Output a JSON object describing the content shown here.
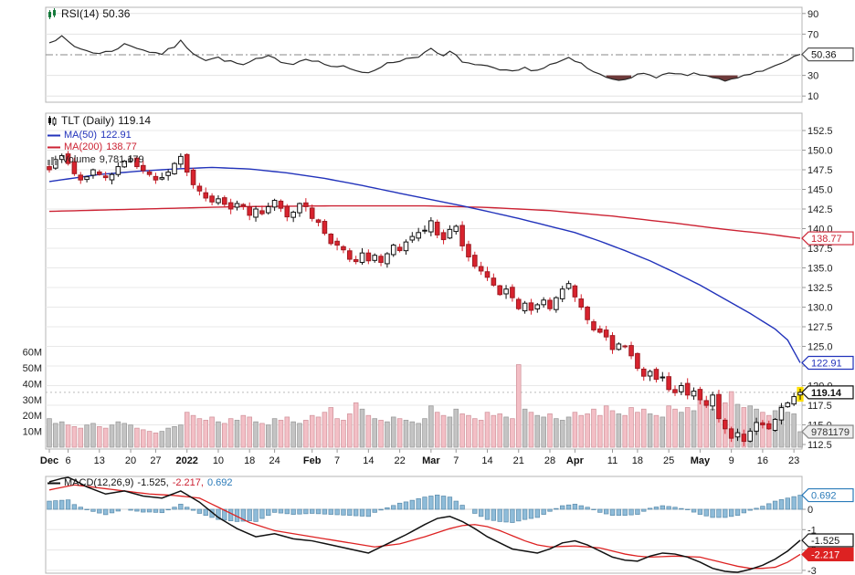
{
  "legends": {
    "rsi": {
      "label": "RSI(14)",
      "value": "50.36"
    },
    "symbol": {
      "label": "TLT (Daily)",
      "value": "119.14"
    },
    "ma50": {
      "label": "MA(50)",
      "value": "122.91"
    },
    "ma200": {
      "label": "MA(200)",
      "value": "138.77"
    },
    "volume": {
      "label": "Volume",
      "value": "9,781,179"
    },
    "macd": {
      "label": "MACD(12,26,9)",
      "macd": "-1.525",
      "signal": "-2.217",
      "hist": "0.692"
    }
  },
  "callouts": {
    "rsi": "50.36",
    "ma200": "138.77",
    "ma50": "122.91",
    "last": "119.14",
    "volume": "9781179",
    "hist": "0.692",
    "macd": "-1.525",
    "signal": "-2.217"
  },
  "axes": {
    "rsi_ticks": [
      90,
      70,
      30,
      10
    ],
    "rsi_mid": 50,
    "price_ticks": [
      "152.5",
      "150.0",
      "147.5",
      "145.0",
      "142.5",
      "140.0",
      "137.5",
      "135.0",
      "132.5",
      "130.0",
      "127.5",
      "125.0",
      "120.0",
      "117.5",
      "115.0",
      "112.5"
    ],
    "volume_ticks": [
      "60M",
      "50M",
      "40M",
      "30M",
      "20M",
      "10M"
    ],
    "macd_ticks": [
      "0",
      "-1",
      "-2",
      "-3"
    ],
    "x_ticks": [
      {
        "l": "Dec",
        "i": 0,
        "b": 1
      },
      {
        "l": "6",
        "i": 3
      },
      {
        "l": "13",
        "i": 8
      },
      {
        "l": "20",
        "i": 13
      },
      {
        "l": "27",
        "i": 17
      },
      {
        "l": "2022",
        "i": 22,
        "b": 1
      },
      {
        "l": "10",
        "i": 27
      },
      {
        "l": "18",
        "i": 32
      },
      {
        "l": "24",
        "i": 36
      },
      {
        "l": "Feb",
        "i": 42,
        "b": 1
      },
      {
        "l": "7",
        "i": 46
      },
      {
        "l": "14",
        "i": 51
      },
      {
        "l": "22",
        "i": 56
      },
      {
        "l": "Mar",
        "i": 61,
        "b": 1
      },
      {
        "l": "7",
        "i": 65
      },
      {
        "l": "14",
        "i": 70
      },
      {
        "l": "21",
        "i": 75
      },
      {
        "l": "28",
        "i": 80
      },
      {
        "l": "Apr",
        "i": 84,
        "b": 1
      },
      {
        "l": "11",
        "i": 90
      },
      {
        "l": "18",
        "i": 94
      },
      {
        "l": "25",
        "i": 99
      },
      {
        "l": "May",
        "i": 104,
        "b": 1
      },
      {
        "l": "9",
        "i": 109
      },
      {
        "l": "16",
        "i": 114
      },
      {
        "l": "23",
        "i": 119
      }
    ]
  },
  "colors": {
    "ma50": "#2233bb",
    "ma200": "#cc2233",
    "candle_down": "#d9232e",
    "candle_down_border": "#9c1b22",
    "candle_up_fill": "#ffffff",
    "candle_stroke": "#111111",
    "vol_up": "#c4c4c4",
    "vol_up_border": "#9a9a9a",
    "vol_down": "#f3bfc6",
    "vol_down_border": "#d1949c",
    "hist": "#8fbcd9",
    "hist_stroke": "#5f8fae",
    "hist_text": "#2b7bb9",
    "macd_line": "#111111",
    "signal": "#dd2222",
    "rsi": "#2a2a2a",
    "highlight": "#ffdf00",
    "oversold": "#6e3a3a"
  },
  "chart_data": {
    "type": "candlestick",
    "symbol": "TLT",
    "timeframe": "Daily",
    "last_price": 119.14,
    "ylim_price": [
      112.5,
      152.5
    ],
    "ylim_rsi": [
      10,
      90
    ],
    "ylim_macd": [
      -3,
      1
    ],
    "indicators": {
      "rsi_period": 14,
      "rsi_last": 50.36,
      "ma50_last": 122.91,
      "ma200_last": 138.77,
      "volume_last": 9781179,
      "macd_params": "12,26,9",
      "macd_last": -1.525,
      "macd_signal_last": -2.217,
      "macd_hist_last": 0.692
    },
    "closes": [
      147.5,
      148.8,
      149.3,
      148.3,
      147.0,
      146.2,
      146.6,
      147.5,
      146.9,
      146.5,
      146.9,
      147.9,
      148.6,
      148.9,
      147.9,
      147.4,
      146.9,
      146.2,
      146.5,
      147.2,
      148.3,
      149.2,
      147.2,
      145.6,
      144.8,
      143.9,
      143.4,
      143.8,
      143.1,
      142.5,
      143.2,
      142.9,
      141.7,
      142.5,
      141.9,
      142.8,
      143.6,
      142.6,
      141.5,
      142.1,
      143.2,
      142.8,
      141.3,
      140.8,
      139.4,
      138.1,
      137.9,
      137.3,
      136.1,
      135.8,
      136.9,
      135.9,
      136.6,
      135.7,
      136.8,
      137.9,
      137.2,
      138.3,
      139.0,
      139.5,
      139.8,
      141.0,
      139.2,
      138.6,
      139.9,
      140.3,
      137.8,
      136.4,
      135.2,
      134.6,
      133.8,
      132.8,
      131.6,
      132.3,
      131.2,
      129.8,
      130.5,
      129.6,
      130.3,
      130.9,
      129.8,
      131.2,
      132.3,
      133.0,
      131.3,
      130.0,
      128.4,
      127.1,
      126.8,
      126.2,
      124.6,
      125.3,
      125.0,
      123.8,
      122.2,
      121.2,
      121.8,
      120.8,
      121.1,
      119.5,
      119.1,
      120.0,
      118.8,
      119.3,
      118.2,
      117.5,
      118.8,
      115.8,
      114.5,
      113.3,
      114.0,
      112.9,
      114.2,
      115.3,
      115.0,
      114.5,
      115.7,
      117.2,
      117.8,
      118.6,
      119.14
    ],
    "volumes_millions": [
      18,
      15,
      16,
      14,
      13,
      12,
      14,
      15,
      13,
      12,
      14,
      16,
      15,
      14,
      12,
      11,
      10,
      9,
      10,
      12,
      13,
      14,
      22,
      20,
      18,
      17,
      19,
      16,
      15,
      18,
      17,
      20,
      19,
      16,
      15,
      14,
      18,
      17,
      19,
      16,
      15,
      17,
      20,
      19,
      22,
      25,
      18,
      17,
      21,
      28,
      24,
      20,
      18,
      17,
      16,
      19,
      18,
      17,
      16,
      15,
      18,
      26,
      22,
      20,
      19,
      24,
      21,
      20,
      18,
      17,
      22,
      20,
      21,
      19,
      18,
      52,
      24,
      22,
      20,
      19,
      21,
      18,
      17,
      19,
      22,
      20,
      21,
      24,
      20,
      26,
      23,
      21,
      20,
      25,
      22,
      24,
      21,
      20,
      19,
      26,
      24,
      22,
      25,
      23,
      30,
      26,
      24,
      33,
      28,
      35,
      27,
      25,
      26,
      24,
      22,
      20,
      23,
      26,
      22,
      21,
      9.78
    ],
    "rsi_keypoints": [
      [
        0,
        63
      ],
      [
        2,
        67
      ],
      [
        4,
        58
      ],
      [
        6,
        54
      ],
      [
        8,
        51
      ],
      [
        10,
        54
      ],
      [
        12,
        60
      ],
      [
        14,
        57
      ],
      [
        16,
        53
      ],
      [
        18,
        51
      ],
      [
        20,
        58
      ],
      [
        21,
        63
      ],
      [
        23,
        52
      ],
      [
        25,
        45
      ],
      [
        27,
        47
      ],
      [
        29,
        43
      ],
      [
        31,
        40
      ],
      [
        33,
        45
      ],
      [
        35,
        48
      ],
      [
        37,
        44
      ],
      [
        39,
        41
      ],
      [
        41,
        47
      ],
      [
        43,
        43
      ],
      [
        45,
        39
      ],
      [
        47,
        38
      ],
      [
        49,
        34
      ],
      [
        51,
        33
      ],
      [
        53,
        39
      ],
      [
        55,
        43
      ],
      [
        57,
        46
      ],
      [
        59,
        49
      ],
      [
        61,
        55
      ],
      [
        63,
        48
      ],
      [
        64,
        53
      ],
      [
        66,
        44
      ],
      [
        68,
        40
      ],
      [
        70,
        38
      ],
      [
        72,
        35
      ],
      [
        74,
        33
      ],
      [
        76,
        37
      ],
      [
        78,
        35
      ],
      [
        80,
        40
      ],
      [
        82,
        44
      ],
      [
        83,
        46
      ],
      [
        85,
        41
      ],
      [
        87,
        33
      ],
      [
        89,
        28
      ],
      [
        91,
        26
      ],
      [
        93,
        29
      ],
      [
        95,
        31
      ],
      [
        97,
        29
      ],
      [
        99,
        32
      ],
      [
        101,
        30
      ],
      [
        103,
        31
      ],
      [
        105,
        29
      ],
      [
        107,
        26
      ],
      [
        109,
        25
      ],
      [
        111,
        30
      ],
      [
        113,
        34
      ],
      [
        115,
        36
      ],
      [
        117,
        41
      ],
      [
        119,
        47
      ],
      [
        120,
        50.36
      ]
    ],
    "ma50_keypoints": [
      [
        0,
        146.0
      ],
      [
        8,
        146.9
      ],
      [
        14,
        147.3
      ],
      [
        20,
        147.6
      ],
      [
        26,
        147.8
      ],
      [
        32,
        147.6
      ],
      [
        38,
        147.1
      ],
      [
        44,
        146.4
      ],
      [
        50,
        145.5
      ],
      [
        56,
        144.5
      ],
      [
        61,
        143.7
      ],
      [
        66,
        142.9
      ],
      [
        70,
        142.2
      ],
      [
        75,
        141.3
      ],
      [
        80,
        140.3
      ],
      [
        84,
        139.5
      ],
      [
        88,
        138.4
      ],
      [
        92,
        137.2
      ],
      [
        96,
        135.9
      ],
      [
        100,
        134.4
      ],
      [
        104,
        132.8
      ],
      [
        108,
        131.0
      ],
      [
        112,
        129.2
      ],
      [
        116,
        127.2
      ],
      [
        118,
        125.8
      ],
      [
        120,
        122.91
      ]
    ],
    "ma200_keypoints": [
      [
        0,
        142.2
      ],
      [
        15,
        142.5
      ],
      [
        30,
        142.8
      ],
      [
        45,
        142.9
      ],
      [
        60,
        142.9
      ],
      [
        70,
        142.7
      ],
      [
        80,
        142.3
      ],
      [
        90,
        141.6
      ],
      [
        100,
        140.7
      ],
      [
        108,
        139.9
      ],
      [
        114,
        139.4
      ],
      [
        120,
        138.77
      ]
    ],
    "macd_keypoints": [
      [
        0,
        1.35
      ],
      [
        3,
        1.6
      ],
      [
        6,
        1.1
      ],
      [
        9,
        0.75
      ],
      [
        12,
        0.9
      ],
      [
        15,
        0.65
      ],
      [
        18,
        0.55
      ],
      [
        21,
        0.9
      ],
      [
        24,
        0.35
      ],
      [
        27,
        -0.4
      ],
      [
        30,
        -0.95
      ],
      [
        33,
        -1.35
      ],
      [
        36,
        -1.2
      ],
      [
        39,
        -1.45
      ],
      [
        42,
        -1.55
      ],
      [
        45,
        -1.75
      ],
      [
        48,
        -1.95
      ],
      [
        51,
        -2.15
      ],
      [
        54,
        -1.7
      ],
      [
        57,
        -1.25
      ],
      [
        60,
        -0.75
      ],
      [
        62,
        -0.45
      ],
      [
        64,
        -0.35
      ],
      [
        66,
        -0.6
      ],
      [
        68,
        -0.95
      ],
      [
        70,
        -1.35
      ],
      [
        72,
        -1.65
      ],
      [
        74,
        -1.95
      ],
      [
        76,
        -2.05
      ],
      [
        78,
        -2.15
      ],
      [
        80,
        -1.95
      ],
      [
        82,
        -1.65
      ],
      [
        84,
        -1.55
      ],
      [
        86,
        -1.75
      ],
      [
        88,
        -2.05
      ],
      [
        90,
        -2.35
      ],
      [
        92,
        -2.5
      ],
      [
        94,
        -2.55
      ],
      [
        96,
        -2.3
      ],
      [
        98,
        -2.15
      ],
      [
        100,
        -2.2
      ],
      [
        102,
        -2.35
      ],
      [
        104,
        -2.6
      ],
      [
        106,
        -2.9
      ],
      [
        108,
        -3.05
      ],
      [
        110,
        -3.1
      ],
      [
        112,
        -2.95
      ],
      [
        114,
        -2.75
      ],
      [
        116,
        -2.45
      ],
      [
        118,
        -2.05
      ],
      [
        120,
        -1.525
      ]
    ],
    "signal_keypoints": [
      [
        0,
        0.95
      ],
      [
        4,
        1.2
      ],
      [
        8,
        1.05
      ],
      [
        12,
        0.9
      ],
      [
        16,
        0.75
      ],
      [
        20,
        0.68
      ],
      [
        24,
        0.55
      ],
      [
        28,
        -0.05
      ],
      [
        32,
        -0.65
      ],
      [
        36,
        -1.05
      ],
      [
        40,
        -1.25
      ],
      [
        44,
        -1.45
      ],
      [
        48,
        -1.65
      ],
      [
        52,
        -1.85
      ],
      [
        56,
        -1.7
      ],
      [
        60,
        -1.35
      ],
      [
        64,
        -0.95
      ],
      [
        66,
        -0.8
      ],
      [
        68,
        -0.75
      ],
      [
        70,
        -0.85
      ],
      [
        72,
        -1.05
      ],
      [
        74,
        -1.3
      ],
      [
        76,
        -1.55
      ],
      [
        78,
        -1.75
      ],
      [
        80,
        -1.85
      ],
      [
        84,
        -1.8
      ],
      [
        88,
        -1.9
      ],
      [
        90,
        -2.05
      ],
      [
        92,
        -2.2
      ],
      [
        94,
        -2.3
      ],
      [
        96,
        -2.35
      ],
      [
        100,
        -2.3
      ],
      [
        104,
        -2.35
      ],
      [
        106,
        -2.5
      ],
      [
        108,
        -2.65
      ],
      [
        110,
        -2.8
      ],
      [
        112,
        -2.9
      ],
      [
        114,
        -2.9
      ],
      [
        116,
        -2.85
      ],
      [
        118,
        -2.6
      ],
      [
        120,
        -2.217
      ]
    ]
  }
}
